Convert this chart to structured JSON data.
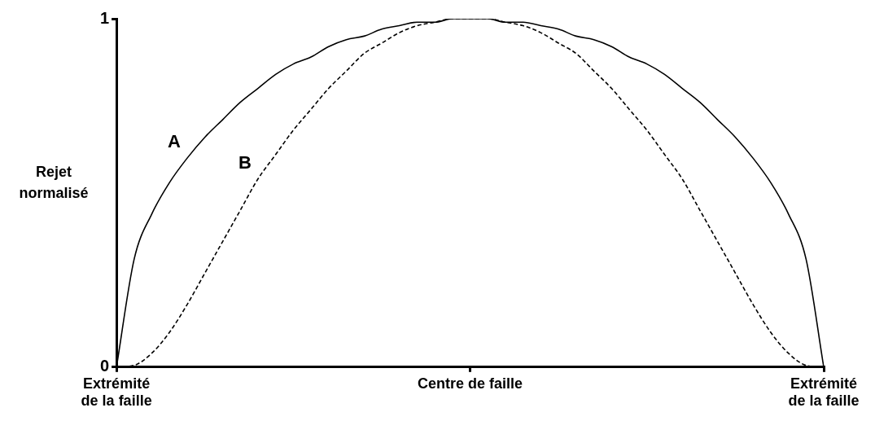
{
  "chart_data": {
    "type": "line",
    "ylabel": "Rejet normalisé",
    "ylim": [
      0,
      1
    ],
    "yticks": [
      0,
      1
    ],
    "grid": false,
    "legend": false,
    "marker": "none",
    "categories": [
      "Extrémité de la faille",
      null,
      null,
      null,
      null,
      null,
      null,
      null,
      null,
      null,
      null,
      null,
      null,
      null,
      null,
      null,
      null,
      null,
      null,
      null,
      "Centre de faille",
      null,
      null,
      null,
      null,
      null,
      null,
      null,
      null,
      null,
      null,
      null,
      null,
      null,
      null,
      null,
      null,
      null,
      null,
      null,
      "Extrémité de la faille"
    ],
    "series": [
      {
        "name": "A",
        "color": "#000000",
        "line_style": "solid",
        "values": [
          0,
          0.31,
          0.44,
          0.53,
          0.6,
          0.66,
          0.71,
          0.76,
          0.8,
          0.84,
          0.87,
          0.89,
          0.92,
          0.94,
          0.95,
          0.97,
          0.98,
          0.99,
          0.99,
          1,
          1,
          1,
          0.99,
          0.99,
          0.98,
          0.97,
          0.95,
          0.94,
          0.92,
          0.89,
          0.87,
          0.84,
          0.8,
          0.76,
          0.71,
          0.66,
          0.6,
          0.53,
          0.44,
          0.31,
          0
        ]
      },
      {
        "name": "B",
        "color": "#000000",
        "line_style": "dashed",
        "values": [
          0,
          0.005,
          0.04,
          0.1,
          0.18,
          0.27,
          0.36,
          0.45,
          0.54,
          0.61,
          0.68,
          0.74,
          0.8,
          0.85,
          0.9,
          0.93,
          0.96,
          0.98,
          0.99,
          1,
          1,
          1,
          0.99,
          0.98,
          0.96,
          0.93,
          0.9,
          0.85,
          0.8,
          0.74,
          0.68,
          0.61,
          0.54,
          0.45,
          0.36,
          0.27,
          0.18,
          0.1,
          0.04,
          0.005,
          0
        ]
      }
    ]
  }
}
